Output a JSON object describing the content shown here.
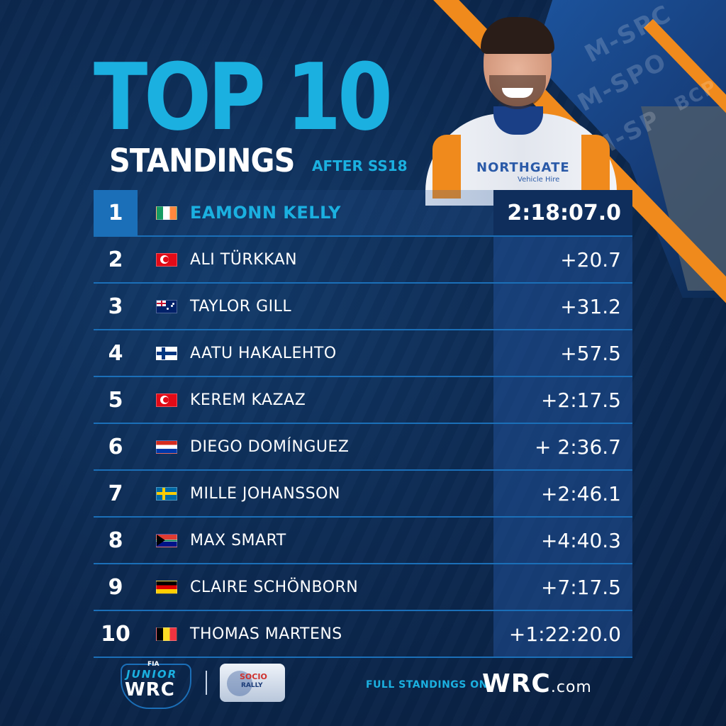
{
  "header": {
    "title": "TOP 10",
    "subtitle": "STANDINGS",
    "after_prefix": "AFTER ",
    "after_stage": "SS18"
  },
  "background_tags": [
    "M-SPC",
    "M-SPO",
    "M-SP",
    "BCP"
  ],
  "driver_photo": {
    "suit_logo": "NORTHGATE",
    "suit_sub": "Vehicle Hire"
  },
  "standings": [
    {
      "pos": "1",
      "flag": "ireland-flag",
      "name": "EAMONN KELLY",
      "time": "2:18:07.0"
    },
    {
      "pos": "2",
      "flag": "turkey-flag",
      "name": "ALI TÜRKKAN",
      "time": "+20.7"
    },
    {
      "pos": "3",
      "flag": "australia-flag",
      "name": "TAYLOR GILL",
      "time": "+31.2"
    },
    {
      "pos": "4",
      "flag": "finland-flag",
      "name": "AATU HAKALEHTO",
      "time": "+57.5"
    },
    {
      "pos": "5",
      "flag": "turkey-flag",
      "name": "KEREM KAZAZ",
      "time": "+2:17.5"
    },
    {
      "pos": "6",
      "flag": "paraguay-flag",
      "name": "DIEGO DOMÍNGUEZ",
      "time": "+ 2:36.7"
    },
    {
      "pos": "7",
      "flag": "sweden-flag",
      "name": "MILLE JOHANSSON",
      "time": "+2:46.1"
    },
    {
      "pos": "8",
      "flag": "south-africa-flag",
      "name": "MAX SMART",
      "time": "+4:40.3"
    },
    {
      "pos": "9",
      "flag": "germany-flag",
      "name": "CLAIRE SCHÖNBORN",
      "time": "+7:17.5"
    },
    {
      "pos": "10",
      "flag": "belgium-flag",
      "name": "THOMAS MARTENS",
      "time": "+1:22:20.0"
    }
  ],
  "footer": {
    "fia": "FIA",
    "junior": "JUNIOR",
    "wrc": "WRC",
    "rally_line1": "SOCIO",
    "rally_line2": "RALLY",
    "full_standings": "FULL STANDINGS ON",
    "site_main": "WRC",
    "site_suffix": ".com"
  },
  "colors": {
    "accent": "#1bb0e0",
    "background": "#0c2a52",
    "stripe": "#f08a1c",
    "row_line": "#1b6fb8"
  }
}
